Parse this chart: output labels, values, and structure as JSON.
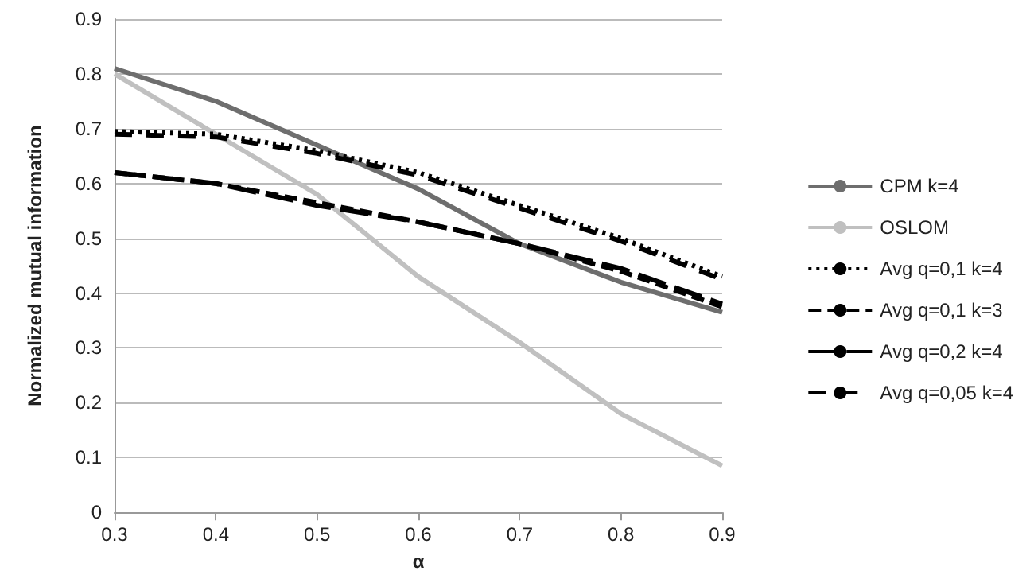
{
  "chart_data": {
    "type": "line",
    "xlabel": "α",
    "ylabel": "Normalized mutual information",
    "x": [
      0.3,
      0.4,
      0.5,
      0.6,
      0.7,
      0.8,
      0.9
    ],
    "series": [
      {
        "name": "CPM k=4",
        "color": "#6e6e6e",
        "line_style": "solid",
        "values": [
          0.81,
          0.75,
          0.67,
          0.59,
          0.49,
          0.42,
          0.365
        ]
      },
      {
        "name": "OSLOM",
        "color": "#c0c0c0",
        "line_style": "solid",
        "values": [
          0.8,
          0.69,
          0.58,
          0.43,
          0.31,
          0.18,
          0.085
        ]
      },
      {
        "name": "Avg q=0,1 k=4",
        "color": "#000000",
        "line_style": "dotted",
        "values": [
          0.695,
          0.69,
          0.66,
          0.62,
          0.56,
          0.5,
          0.43
        ]
      },
      {
        "name": "Avg q=0,1 k=3",
        "color": "#000000",
        "line_style": "dashed",
        "values": [
          0.62,
          0.6,
          0.565,
          0.53,
          0.49,
          0.44,
          0.375
        ]
      },
      {
        "name": "Avg q=0,2 k=4",
        "color": "#000000",
        "line_style": "dashed",
        "values": [
          0.62,
          0.6,
          0.56,
          0.53,
          0.49,
          0.445,
          0.38
        ]
      },
      {
        "name": "Avg q=0,05 k=4",
        "color": "#000000",
        "line_style": "dashed",
        "values": [
          0.69,
          0.685,
          0.655,
          0.615,
          0.555,
          0.495,
          0.425
        ]
      }
    ],
    "xlim": [
      0.3,
      0.9
    ],
    "xticks": [
      0.3,
      0.4,
      0.5,
      0.6,
      0.7,
      0.8,
      0.9
    ],
    "ylim": [
      0,
      0.9
    ],
    "yticks": [
      0,
      0.1,
      0.2,
      0.3,
      0.4,
      0.5,
      0.6,
      0.7,
      0.8,
      0.9
    ],
    "grid": "y",
    "legend": "right",
    "marker": "none"
  }
}
